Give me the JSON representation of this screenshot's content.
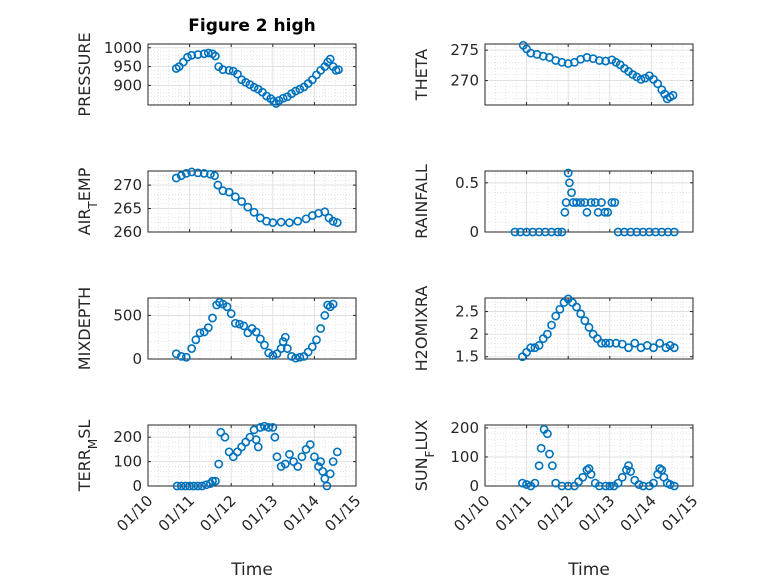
{
  "figure": {
    "title": "Figure 2 high",
    "xlabel": "Time",
    "marker_color": "#0072BD"
  },
  "chart_data": [
    {
      "type": "scatter",
      "ylabel": "PRESSURE",
      "yticks": [
        900,
        950,
        1000
      ],
      "ylim": [
        848,
        1010
      ],
      "points": [
        [
          0.68,
          945
        ],
        [
          0.75,
          950
        ],
        [
          0.85,
          962
        ],
        [
          0.95,
          975
        ],
        [
          1.05,
          980
        ],
        [
          1.2,
          982
        ],
        [
          1.35,
          984
        ],
        [
          1.45,
          986
        ],
        [
          1.55,
          984
        ],
        [
          1.62,
          978
        ],
        [
          1.7,
          950
        ],
        [
          1.8,
          942
        ],
        [
          1.95,
          940
        ],
        [
          2.05,
          938
        ],
        [
          2.15,
          930
        ],
        [
          2.25,
          915
        ],
        [
          2.35,
          908
        ],
        [
          2.45,
          902
        ],
        [
          2.55,
          895
        ],
        [
          2.65,
          890
        ],
        [
          2.75,
          882
        ],
        [
          2.85,
          872
        ],
        [
          2.95,
          865
        ],
        [
          3.02,
          858
        ],
        [
          3.08,
          852
        ],
        [
          3.15,
          860
        ],
        [
          3.25,
          866
        ],
        [
          3.35,
          870
        ],
        [
          3.45,
          878
        ],
        [
          3.55,
          885
        ],
        [
          3.65,
          890
        ],
        [
          3.75,
          896
        ],
        [
          3.85,
          905
        ],
        [
          3.95,
          915
        ],
        [
          4.05,
          928
        ],
        [
          4.15,
          940
        ],
        [
          4.25,
          950
        ],
        [
          4.32,
          962
        ],
        [
          4.38,
          970
        ],
        [
          4.45,
          950
        ],
        [
          4.52,
          940
        ],
        [
          4.58,
          942
        ]
      ]
    },
    {
      "type": "scatter",
      "ylabel": "THETA",
      "yticks": [
        270,
        275
      ],
      "ylim": [
        266,
        276
      ],
      "points": [
        [
          0.92,
          275.8
        ],
        [
          1.0,
          275.2
        ],
        [
          1.1,
          274.5
        ],
        [
          1.25,
          274.3
        ],
        [
          1.4,
          274.0
        ],
        [
          1.55,
          273.8
        ],
        [
          1.7,
          273.3
        ],
        [
          1.85,
          273.0
        ],
        [
          2.0,
          272.8
        ],
        [
          2.15,
          273.0
        ],
        [
          2.3,
          273.5
        ],
        [
          2.45,
          273.8
        ],
        [
          2.6,
          273.6
        ],
        [
          2.75,
          273.3
        ],
        [
          2.9,
          273.2
        ],
        [
          3.05,
          273.4
        ],
        [
          3.15,
          273.0
        ],
        [
          3.25,
          272.6
        ],
        [
          3.35,
          272.0
        ],
        [
          3.45,
          271.5
        ],
        [
          3.55,
          271.0
        ],
        [
          3.65,
          270.6
        ],
        [
          3.75,
          270.2
        ],
        [
          3.85,
          270.4
        ],
        [
          3.95,
          270.8
        ],
        [
          4.05,
          270.2
        ],
        [
          4.15,
          269.5
        ],
        [
          4.25,
          268.5
        ],
        [
          4.32,
          267.8
        ],
        [
          4.38,
          267.0
        ],
        [
          4.45,
          267.3
        ],
        [
          4.52,
          267.6
        ]
      ]
    },
    {
      "type": "scatter",
      "ylabel": "AIR_TEMP",
      "yticks": [
        260,
        265,
        270
      ],
      "ylim": [
        260,
        273
      ],
      "points": [
        [
          0.68,
          271.5
        ],
        [
          0.8,
          272.0
        ],
        [
          0.92,
          272.5
        ],
        [
          1.05,
          272.8
        ],
        [
          1.2,
          272.6
        ],
        [
          1.35,
          272.5
        ],
        [
          1.5,
          272.3
        ],
        [
          1.6,
          272.0
        ],
        [
          1.68,
          270.0
        ],
        [
          1.8,
          268.8
        ],
        [
          1.95,
          268.5
        ],
        [
          2.1,
          267.5
        ],
        [
          2.25,
          266.5
        ],
        [
          2.4,
          265.3
        ],
        [
          2.55,
          264.2
        ],
        [
          2.7,
          263.0
        ],
        [
          2.85,
          262.3
        ],
        [
          3.0,
          262.0
        ],
        [
          3.2,
          262.1
        ],
        [
          3.4,
          262.0
        ],
        [
          3.6,
          262.3
        ],
        [
          3.8,
          262.8
        ],
        [
          3.95,
          263.5
        ],
        [
          4.1,
          264.0
        ],
        [
          4.25,
          264.3
        ],
        [
          4.35,
          263.0
        ],
        [
          4.45,
          262.3
        ],
        [
          4.55,
          262.0
        ]
      ]
    },
    {
      "type": "scatter",
      "ylabel": "RAINFALL",
      "yticks": [
        0,
        0.5
      ],
      "ylim": [
        0,
        0.62
      ],
      "points": [
        [
          0.72,
          0
        ],
        [
          0.85,
          0
        ],
        [
          1.0,
          0
        ],
        [
          1.15,
          0
        ],
        [
          1.3,
          0
        ],
        [
          1.45,
          0
        ],
        [
          1.6,
          0
        ],
        [
          1.75,
          0
        ],
        [
          1.85,
          0
        ],
        [
          1.92,
          0.2
        ],
        [
          1.95,
          0.3
        ],
        [
          2.0,
          0.6
        ],
        [
          2.03,
          0.5
        ],
        [
          2.08,
          0.4
        ],
        [
          2.12,
          0.3
        ],
        [
          2.2,
          0.3
        ],
        [
          2.3,
          0.3
        ],
        [
          2.4,
          0.3
        ],
        [
          2.45,
          0.2
        ],
        [
          2.55,
          0.3
        ],
        [
          2.65,
          0.3
        ],
        [
          2.72,
          0.2
        ],
        [
          2.8,
          0.3
        ],
        [
          2.88,
          0.2
        ],
        [
          2.95,
          0.2
        ],
        [
          3.05,
          0.3
        ],
        [
          3.12,
          0.3
        ],
        [
          3.2,
          0
        ],
        [
          3.35,
          0
        ],
        [
          3.5,
          0
        ],
        [
          3.65,
          0
        ],
        [
          3.8,
          0
        ],
        [
          3.95,
          0
        ],
        [
          4.1,
          0
        ],
        [
          4.25,
          0
        ],
        [
          4.4,
          0
        ],
        [
          4.55,
          0
        ]
      ]
    },
    {
      "type": "scatter",
      "ylabel": "MIXDEPTH",
      "yticks": [
        0,
        500
      ],
      "ylim": [
        0,
        700
      ],
      "points": [
        [
          0.68,
          60
        ],
        [
          0.8,
          30
        ],
        [
          0.92,
          20
        ],
        [
          1.05,
          120
        ],
        [
          1.15,
          220
        ],
        [
          1.25,
          300
        ],
        [
          1.35,
          310
        ],
        [
          1.45,
          360
        ],
        [
          1.55,
          470
        ],
        [
          1.65,
          620
        ],
        [
          1.72,
          650
        ],
        [
          1.8,
          630
        ],
        [
          1.9,
          600
        ],
        [
          2.0,
          520
        ],
        [
          2.1,
          410
        ],
        [
          2.2,
          400
        ],
        [
          2.3,
          380
        ],
        [
          2.4,
          300
        ],
        [
          2.5,
          350
        ],
        [
          2.6,
          310
        ],
        [
          2.7,
          230
        ],
        [
          2.8,
          160
        ],
        [
          2.9,
          70
        ],
        [
          3.0,
          40
        ],
        [
          3.1,
          60
        ],
        [
          3.2,
          120
        ],
        [
          3.25,
          200
        ],
        [
          3.3,
          250
        ],
        [
          3.35,
          120
        ],
        [
          3.45,
          30
        ],
        [
          3.55,
          10
        ],
        [
          3.65,
          20
        ],
        [
          3.75,
          30
        ],
        [
          3.85,
          80
        ],
        [
          3.95,
          140
        ],
        [
          4.05,
          220
        ],
        [
          4.15,
          350
        ],
        [
          4.25,
          500
        ],
        [
          4.32,
          620
        ],
        [
          4.38,
          600
        ],
        [
          4.45,
          630
        ]
      ]
    },
    {
      "type": "scatter",
      "ylabel": "H2OMIXRA",
      "yticks": [
        1.5,
        2,
        2.5
      ],
      "ylim": [
        1.45,
        2.8
      ],
      "points": [
        [
          0.9,
          1.5
        ],
        [
          1.0,
          1.6
        ],
        [
          1.1,
          1.7
        ],
        [
          1.2,
          1.7
        ],
        [
          1.3,
          1.75
        ],
        [
          1.4,
          1.9
        ],
        [
          1.5,
          2.0
        ],
        [
          1.6,
          2.2
        ],
        [
          1.7,
          2.4
        ],
        [
          1.8,
          2.55
        ],
        [
          1.9,
          2.7
        ],
        [
          2.0,
          2.78
        ],
        [
          2.1,
          2.7
        ],
        [
          2.2,
          2.6
        ],
        [
          2.3,
          2.45
        ],
        [
          2.4,
          2.3
        ],
        [
          2.5,
          2.15
        ],
        [
          2.6,
          2.0
        ],
        [
          2.7,
          1.9
        ],
        [
          2.8,
          1.8
        ],
        [
          2.9,
          1.8
        ],
        [
          3.0,
          1.8
        ],
        [
          3.15,
          1.8
        ],
        [
          3.3,
          1.78
        ],
        [
          3.45,
          1.7
        ],
        [
          3.6,
          1.8
        ],
        [
          3.75,
          1.7
        ],
        [
          3.9,
          1.75
        ],
        [
          4.05,
          1.7
        ],
        [
          4.2,
          1.8
        ],
        [
          4.35,
          1.7
        ],
        [
          4.45,
          1.75
        ],
        [
          4.55,
          1.7
        ]
      ]
    },
    {
      "type": "scatter",
      "ylabel": "TERR_MSL",
      "yticks": [
        0,
        100,
        200
      ],
      "ylim": [
        0,
        250
      ],
      "points": [
        [
          0.7,
          0
        ],
        [
          0.8,
          0
        ],
        [
          0.9,
          0
        ],
        [
          1.0,
          0
        ],
        [
          1.1,
          0
        ],
        [
          1.2,
          0
        ],
        [
          1.3,
          0
        ],
        [
          1.4,
          5
        ],
        [
          1.5,
          10
        ],
        [
          1.55,
          20
        ],
        [
          1.62,
          20
        ],
        [
          1.7,
          90
        ],
        [
          1.75,
          220
        ],
        [
          1.85,
          200
        ],
        [
          1.95,
          140
        ],
        [
          2.05,
          120
        ],
        [
          2.15,
          140
        ],
        [
          2.25,
          160
        ],
        [
          2.35,
          180
        ],
        [
          2.45,
          200
        ],
        [
          2.55,
          230
        ],
        [
          2.6,
          190
        ],
        [
          2.65,
          160
        ],
        [
          2.7,
          240
        ],
        [
          2.8,
          245
        ],
        [
          2.9,
          240
        ],
        [
          3.0,
          240
        ],
        [
          3.05,
          200
        ],
        [
          3.1,
          120
        ],
        [
          3.2,
          80
        ],
        [
          3.3,
          90
        ],
        [
          3.4,
          130
        ],
        [
          3.5,
          100
        ],
        [
          3.6,
          80
        ],
        [
          3.7,
          120
        ],
        [
          3.8,
          150
        ],
        [
          3.9,
          170
        ],
        [
          4.0,
          120
        ],
        [
          4.1,
          80
        ],
        [
          4.15,
          100
        ],
        [
          4.2,
          60
        ],
        [
          4.25,
          30
        ],
        [
          4.3,
          0
        ],
        [
          4.38,
          50
        ],
        [
          4.45,
          100
        ],
        [
          4.55,
          140
        ]
      ]
    },
    {
      "type": "scatter",
      "ylabel": "SUN_FLUX",
      "yticks": [
        0,
        100,
        200
      ],
      "ylim": [
        0,
        210
      ],
      "points": [
        [
          0.9,
          10
        ],
        [
          1.0,
          5
        ],
        [
          1.1,
          0
        ],
        [
          1.2,
          10
        ],
        [
          1.3,
          70
        ],
        [
          1.35,
          130
        ],
        [
          1.42,
          195
        ],
        [
          1.5,
          180
        ],
        [
          1.55,
          110
        ],
        [
          1.62,
          70
        ],
        [
          1.7,
          10
        ],
        [
          1.85,
          0
        ],
        [
          2.0,
          0
        ],
        [
          2.15,
          0
        ],
        [
          2.25,
          15
        ],
        [
          2.35,
          30
        ],
        [
          2.45,
          55
        ],
        [
          2.5,
          60
        ],
        [
          2.55,
          40
        ],
        [
          2.65,
          10
        ],
        [
          2.75,
          0
        ],
        [
          2.9,
          0
        ],
        [
          3.0,
          0
        ],
        [
          3.1,
          0
        ],
        [
          3.2,
          10
        ],
        [
          3.3,
          30
        ],
        [
          3.4,
          55
        ],
        [
          3.45,
          70
        ],
        [
          3.5,
          50
        ],
        [
          3.6,
          20
        ],
        [
          3.7,
          5
        ],
        [
          3.8,
          0
        ],
        [
          3.95,
          0
        ],
        [
          4.05,
          10
        ],
        [
          4.15,
          40
        ],
        [
          4.2,
          60
        ],
        [
          4.25,
          55
        ],
        [
          4.3,
          30
        ],
        [
          4.38,
          10
        ],
        [
          4.45,
          5
        ],
        [
          4.55,
          0
        ]
      ]
    }
  ],
  "axes": [
    {
      "ylabel": "PRESSURE",
      "y_tick_labels": [
        "900",
        "950",
        "1000"
      ]
    },
    {
      "ylabel": "THETA",
      "y_tick_labels": [
        "270",
        "275"
      ]
    },
    {
      "ylabel": "AIR_TEMP",
      "y_tick_labels": [
        "260",
        "265",
        "270"
      ]
    },
    {
      "ylabel": "RAINFALL",
      "y_tick_labels": [
        "0",
        "0.5"
      ]
    },
    {
      "ylabel": "MIXDEPTH",
      "y_tick_labels": [
        "0",
        "500"
      ]
    },
    {
      "ylabel": "H2OMIXRA",
      "y_tick_labels": [
        "1.5",
        "2",
        "2.5"
      ]
    },
    {
      "ylabel": "TERR_MSL",
      "y_tick_labels": [
        "0",
        "100",
        "200"
      ]
    },
    {
      "ylabel": "SUN_FLUX",
      "y_tick_labels": [
        "0",
        "100",
        "200"
      ]
    }
  ],
  "x_tick_labels": [
    "01/10",
    "01/11",
    "01/12",
    "01/13",
    "01/14",
    "01/15"
  ]
}
